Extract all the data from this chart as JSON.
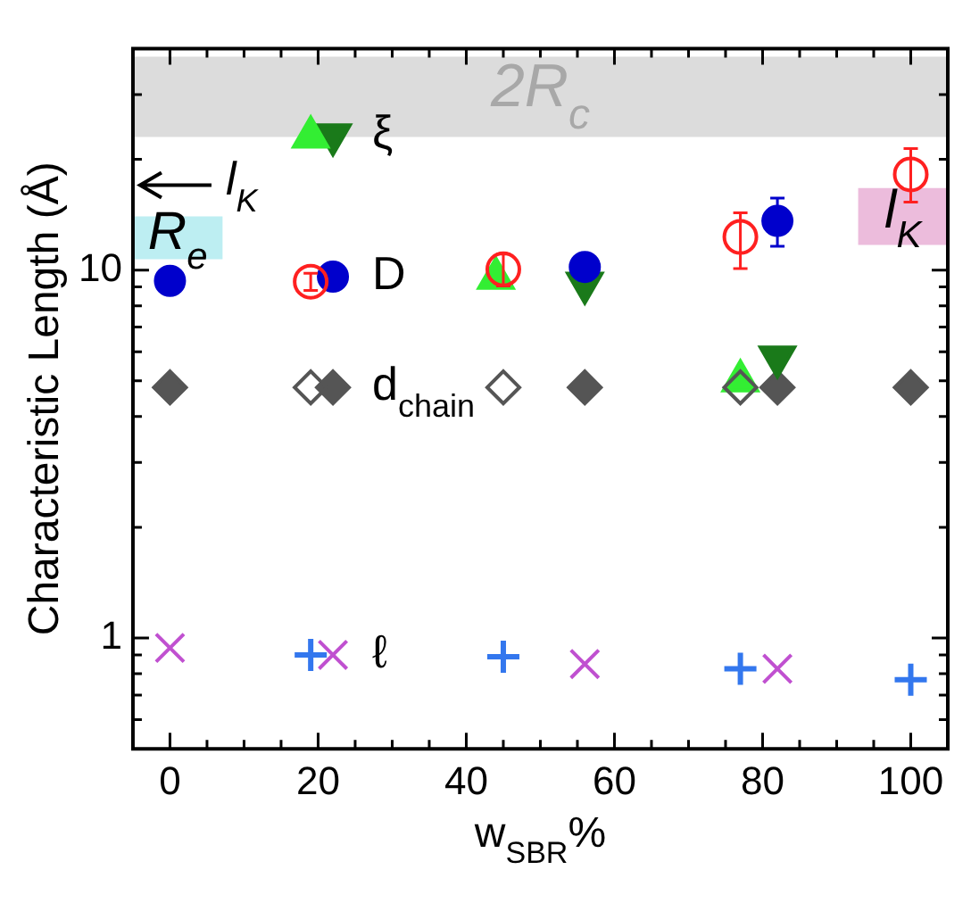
{
  "chart_data": {
    "type": "scatter",
    "xlabel": "w$_{SBR}$%",
    "ylabel": "Characteristic Length (Å)",
    "log": "y",
    "grid": false,
    "legend": false,
    "xlim": [
      -5,
      105
    ],
    "xticks": [
      0,
      {
        "value": 5,
        "label": null
      },
      {
        "value": 10,
        "label": null
      },
      {
        "value": 15,
        "label": null
      },
      20,
      {
        "value": 25,
        "label": null
      },
      {
        "value": 30,
        "label": null
      },
      {
        "value": 35,
        "label": null
      },
      40,
      {
        "value": 45,
        "label": null
      },
      {
        "value": 50,
        "label": null
      },
      {
        "value": 55,
        "label": null
      },
      60,
      {
        "value": 65,
        "label": null
      },
      {
        "value": 70,
        "label": null
      },
      {
        "value": 75,
        "label": null
      },
      80,
      {
        "value": 85,
        "label": null
      },
      {
        "value": 90,
        "label": null
      },
      {
        "value": 95,
        "label": null
      },
      100
    ],
    "ylim": [
      0.5,
      40
    ],
    "yticks": [
      {
        "value": 0.6,
        "label": null
      },
      {
        "value": 0.7,
        "label": null
      },
      {
        "value": 0.8,
        "label": null
      },
      {
        "value": 0.9,
        "label": null
      },
      1,
      {
        "value": 2,
        "label": null
      },
      {
        "value": 3,
        "label": null
      },
      {
        "value": 4,
        "label": null
      },
      {
        "value": 5,
        "label": null
      },
      {
        "value": 6,
        "label": null
      },
      {
        "value": 7,
        "label": null
      },
      {
        "value": 8,
        "label": null
      },
      {
        "value": 9,
        "label": null
      },
      10,
      {
        "value": 20,
        "label": null
      },
      {
        "value": 30,
        "label": null
      }
    ],
    "bands": [
      {
        "axis": "y",
        "from": 23,
        "to": 38,
        "label": "2R$_{c}$",
        "color": "#dcdcdc"
      },
      {
        "axis": "y",
        "from": 10.7,
        "to": 14,
        "label": "R$_{e}$",
        "color": "#bdeef2"
      },
      {
        "axis": "y",
        "from": 11.7,
        "to": 16.7,
        "label": "l$_{K}$",
        "color": "#ecbcdc"
      }
    ],
    "series": [
      {
        "name": "D",
        "color": "#0000cc",
        "marker": "circle",
        "x": [
          0,
          22,
          56,
          82
        ],
        "values": [
          9.35,
          9.6,
          10.2,
          13.6
        ],
        "errors": [
          null,
          null,
          0.8,
          [
            11.6,
            15.7
          ]
        ]
      },
      {
        "color": "#ff2020",
        "marker": "circle-open",
        "x": [
          19,
          45,
          77,
          100
        ],
        "values": [
          9.3,
          10.05,
          12.3,
          18.2
        ],
        "errors": [
          0.5,
          1,
          [
            10.1,
            14.3
          ],
          [
            15.3,
            21.4
          ]
        ]
      },
      {
        "color": "#33ee33",
        "marker": "triangle",
        "x": [
          19,
          44,
          77
        ],
        "values": [
          23,
          9.5,
          5
        ]
      },
      {
        "name": "ξ",
        "color": "#1a7a1a",
        "marker": "triangle-down",
        "x": [
          22,
          56,
          82
        ],
        "values": [
          23.3,
          9.2,
          5.8
        ]
      },
      {
        "name": "d$_{chain}$",
        "color": "#555555",
        "marker": "diamond",
        "x": [
          0,
          22,
          56,
          82,
          100
        ],
        "values": [
          4.8,
          4.8,
          4.8,
          4.8,
          4.8
        ]
      },
      {
        "color": "#555555",
        "marker": "diamond-open",
        "x": [
          19,
          45,
          77
        ],
        "values": [
          4.8,
          4.8,
          4.8
        ]
      },
      {
        "name": "ℓ",
        "color": "#c050d0",
        "marker": "cross",
        "x": [
          0,
          22,
          56,
          82
        ],
        "values": [
          0.94,
          0.9,
          0.85,
          0.825
        ]
      },
      {
        "color": "#3377ee",
        "marker": "plus",
        "x": [
          19,
          45,
          77,
          100
        ],
        "values": [
          0.9,
          0.89,
          0.825,
          0.77
        ]
      }
    ],
    "annotations": [
      "l$_{K}$"
    ]
  }
}
